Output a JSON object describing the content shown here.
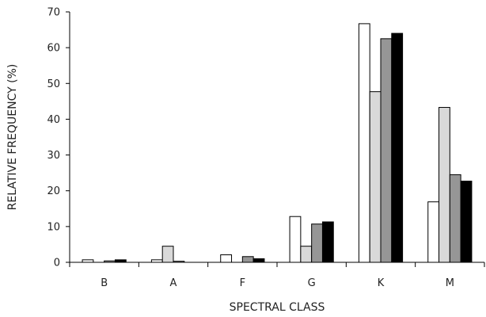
{
  "chart_data": {
    "type": "bar",
    "title": "",
    "xlabel": "SPECTRAL CLASS",
    "ylabel": "RELATIVE FREQUENCY (%)",
    "categories": [
      "B",
      "A",
      "F",
      "G",
      "K",
      "M"
    ],
    "ylim": [
      0,
      70
    ],
    "yticks": [
      0,
      10,
      20,
      30,
      40,
      50,
      60,
      70
    ],
    "grid": false,
    "legend": "none",
    "series": [
      {
        "color": "#ffffff",
        "values": [
          0.7,
          0.7,
          2.1,
          12.8,
          66.7,
          16.9
        ]
      },
      {
        "color": "#d9d9d9",
        "values": [
          0.0,
          4.5,
          0.0,
          4.5,
          47.7,
          43.3
        ]
      },
      {
        "color": "#969696",
        "values": [
          0.4,
          0.3,
          1.6,
          10.7,
          62.5,
          24.5
        ]
      },
      {
        "color": "#000000",
        "values": [
          0.7,
          0.0,
          1.0,
          11.3,
          64.0,
          22.7
        ]
      }
    ]
  }
}
